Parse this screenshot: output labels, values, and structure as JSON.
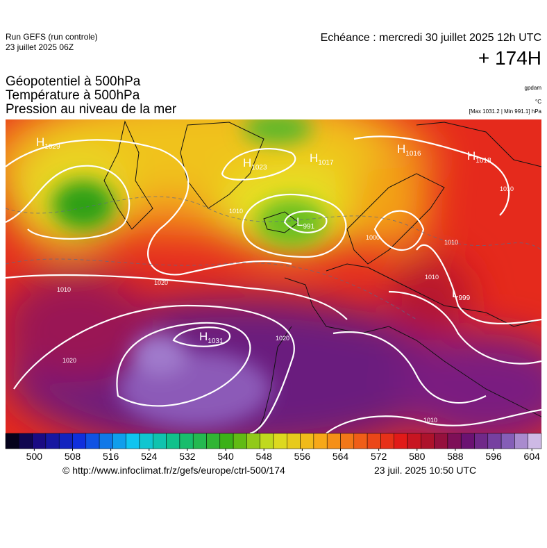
{
  "header": {
    "run": "Run GEFS (run controle)",
    "run_date": "23 juillet 2025 06Z",
    "valid": "Echéance : mercredi 30 juillet 2025 12h UTC",
    "lead": "+ 174H",
    "titles": [
      "Géopotentiel à 500hPa",
      "Température à 500hPa",
      "Pression au niveau de la mer"
    ],
    "units": [
      "gpdam",
      "°C",
      "[Max 1031.2 | Min 991.1] hPa"
    ]
  },
  "map": {
    "centers": [
      {
        "letter": "H",
        "value": 1029
      },
      {
        "letter": "H",
        "value": 1023
      },
      {
        "letter": "H",
        "value": 1017
      },
      {
        "letter": "H",
        "value": 1016
      },
      {
        "letter": "H",
        "value": 1018
      },
      {
        "letter": "L",
        "value": 991
      },
      {
        "letter": "L",
        "value": 999
      },
      {
        "letter": "H",
        "value": 1031
      }
    ],
    "contour_labels": [
      1010,
      1000,
      1020,
      1010,
      1020,
      1020,
      1010,
      1010,
      1010,
      1010
    ]
  },
  "colorbar": {
    "range": [
      494,
      606
    ],
    "ticks": [
      500,
      508,
      516,
      524,
      532,
      540,
      548,
      556,
      564,
      572,
      580,
      588,
      596,
      604
    ]
  },
  "footer": {
    "source": "© http://www.infoclimat.fr/z/gefs/europe/ctrl-500/174",
    "generated": "23 juil. 2025 10:50 UTC"
  }
}
